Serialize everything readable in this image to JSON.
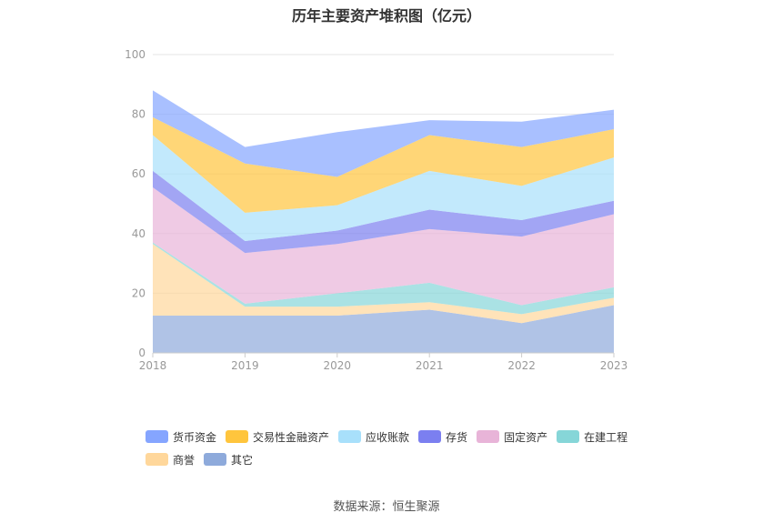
{
  "chart_data": {
    "type": "area",
    "stacked": true,
    "title": "历年主要资产堆积图（亿元）",
    "x": [
      "2018",
      "2019",
      "2020",
      "2021",
      "2022",
      "2023"
    ],
    "ylim": [
      0,
      100
    ],
    "yticks": [
      0,
      20,
      40,
      60,
      80,
      100
    ],
    "grid": true,
    "legend_position": "bottom",
    "series": [
      {
        "name": "其它",
        "color": "#8eaadb",
        "values": [
          12.5,
          12.5,
          12.5,
          14.5,
          10,
          16
        ]
      },
      {
        "name": "商誉",
        "color": "#ffd79b",
        "values": [
          24,
          3,
          3,
          2.5,
          3,
          2.5
        ]
      },
      {
        "name": "在建工程",
        "color": "#86d6d8",
        "values": [
          0.5,
          1,
          4.5,
          6.5,
          3,
          3.5
        ]
      },
      {
        "name": "固定资产",
        "color": "#e8b4d8",
        "values": [
          18.5,
          17,
          16.5,
          18,
          23,
          24.5
        ]
      },
      {
        "name": "存货",
        "color": "#7b7ff0",
        "values": [
          5.5,
          4,
          4.5,
          6.5,
          5.5,
          4.5
        ]
      },
      {
        "name": "应收账款",
        "color": "#a8e0fb",
        "values": [
          12,
          9.5,
          8.5,
          13,
          11.5,
          14.5
        ]
      },
      {
        "name": "交易性金融资产",
        "color": "#ffc53d",
        "values": [
          6,
          16.5,
          9.5,
          12,
          13,
          9.5
        ]
      },
      {
        "name": "货币资金",
        "color": "#85a5ff",
        "values": [
          9,
          5.5,
          15,
          5,
          8.5,
          6.5
        ]
      }
    ],
    "legend_order": [
      "货币资金",
      "交易性金融资产",
      "应收账款",
      "存货",
      "固定资产",
      "在建工程",
      "商誉",
      "其它"
    ]
  },
  "source_text": "数据来源：恒生聚源"
}
